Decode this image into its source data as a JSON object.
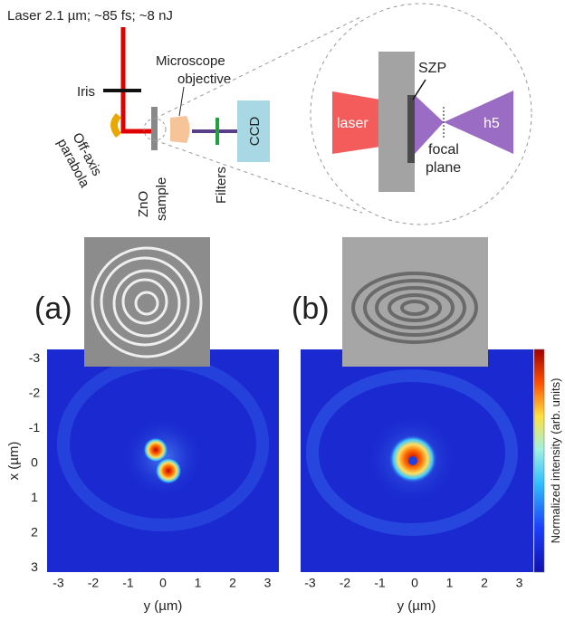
{
  "setup": {
    "laser": "Laser 2.1 µm; ~85 fs; ~8 nJ",
    "iris": "Iris",
    "parabola": [
      "Off-axis",
      "parabola"
    ],
    "objective": [
      "Microscope",
      "objective"
    ],
    "sample": [
      "ZnO",
      "sample"
    ],
    "filters": "Filters",
    "ccd": "CCD"
  },
  "inset": {
    "laser": "laser",
    "szp": "SZP",
    "focal": [
      "focal",
      "plane"
    ],
    "harmonic": "h5"
  },
  "panels": [
    {
      "label": "(a)",
      "x_label": "y (µm)",
      "x_ticks": [
        -3,
        -2,
        -1,
        0,
        1,
        2,
        3
      ],
      "y_ticks": [
        -3,
        -2,
        -1,
        0,
        1,
        2,
        3
      ]
    },
    {
      "label": "(b)",
      "x_label": "y (µm)",
      "x_ticks": [
        -3,
        -2,
        -1,
        0,
        1,
        2,
        3
      ]
    }
  ],
  "y_axis_label": "x (µm)",
  "colorbar_label": "Normalized intensity (arb. units)"
}
